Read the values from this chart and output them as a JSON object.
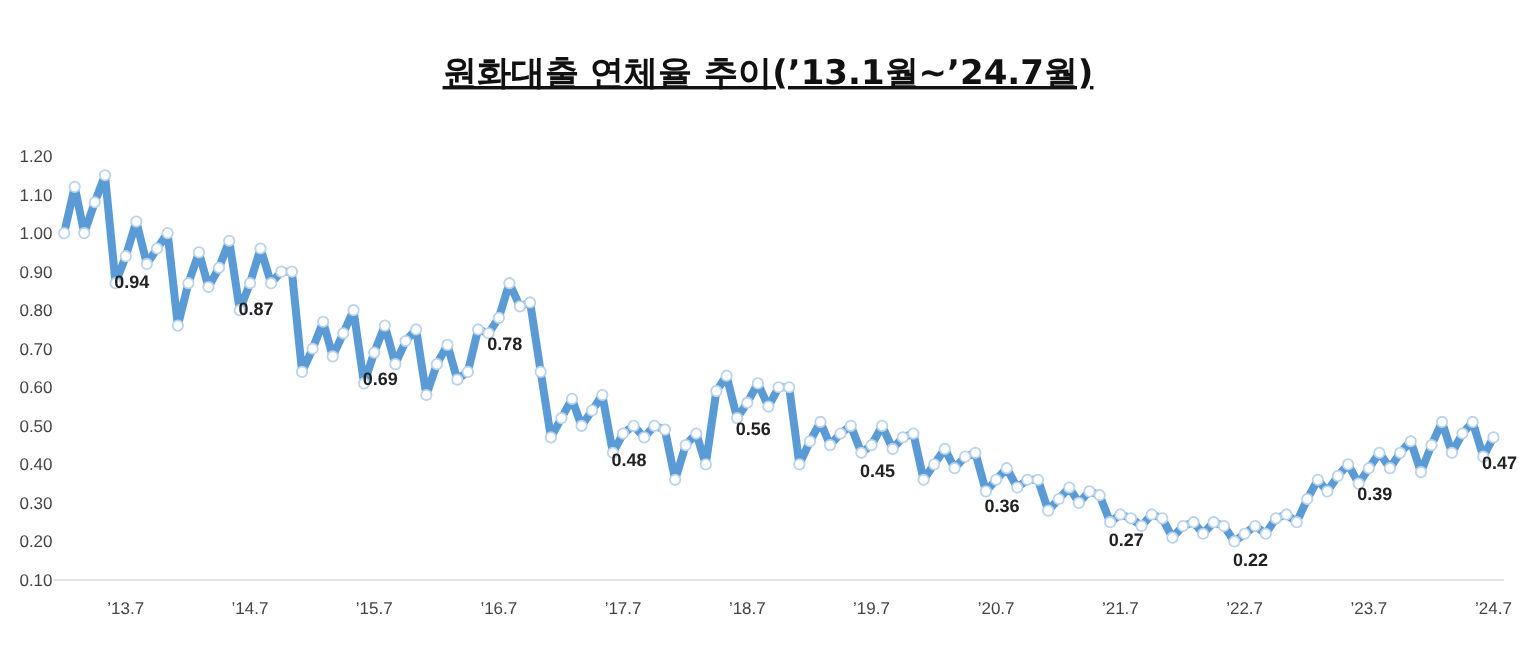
{
  "chart_data": {
    "type": "line",
    "title": "원화대출 연체율 추이(’13.1월~’24.7월)",
    "x": [
      "2013-01",
      "2013-02",
      "2013-03",
      "2013-04",
      "2013-05",
      "2013-06",
      "2013-07",
      "2013-08",
      "2013-09",
      "2013-10",
      "2013-11",
      "2013-12",
      "2014-01",
      "2014-02",
      "2014-03",
      "2014-04",
      "2014-05",
      "2014-06",
      "2014-07",
      "2014-08",
      "2014-09",
      "2014-10",
      "2014-11",
      "2014-12",
      "2015-01",
      "2015-02",
      "2015-03",
      "2015-04",
      "2015-05",
      "2015-06",
      "2015-07",
      "2015-08",
      "2015-09",
      "2015-10",
      "2015-11",
      "2015-12",
      "2016-01",
      "2016-02",
      "2016-03",
      "2016-04",
      "2016-05",
      "2016-06",
      "2016-07",
      "2016-08",
      "2016-09",
      "2016-10",
      "2016-11",
      "2016-12",
      "2017-01",
      "2017-02",
      "2017-03",
      "2017-04",
      "2017-05",
      "2017-06",
      "2017-07",
      "2017-08",
      "2017-09",
      "2017-10",
      "2017-11",
      "2017-12",
      "2018-01",
      "2018-02",
      "2018-03",
      "2018-04",
      "2018-05",
      "2018-06",
      "2018-07",
      "2018-08",
      "2018-09",
      "2018-10",
      "2018-11",
      "2018-12",
      "2019-01",
      "2019-02",
      "2019-03",
      "2019-04",
      "2019-05",
      "2019-06",
      "2019-07",
      "2019-08",
      "2019-09",
      "2019-10",
      "2019-11",
      "2019-12",
      "2020-01",
      "2020-02",
      "2020-03",
      "2020-04",
      "2020-05",
      "2020-06",
      "2020-07",
      "2020-08",
      "2020-09",
      "2020-10",
      "2020-11",
      "2020-12",
      "2021-01",
      "2021-02",
      "2021-03",
      "2021-04",
      "2021-05",
      "2021-06",
      "2021-07",
      "2021-08",
      "2021-09",
      "2021-10",
      "2021-11",
      "2021-12",
      "2022-01",
      "2022-02",
      "2022-03",
      "2022-04",
      "2022-05",
      "2022-06",
      "2022-07",
      "2022-08",
      "2022-09",
      "2022-10",
      "2022-11",
      "2022-12",
      "2023-01",
      "2023-02",
      "2023-03",
      "2023-04",
      "2023-05",
      "2023-06",
      "2023-07",
      "2023-08",
      "2023-09",
      "2023-10",
      "2023-11",
      "2023-12",
      "2024-01",
      "2024-02",
      "2024-03",
      "2024-04",
      "2024-05",
      "2024-06",
      "2024-07"
    ],
    "series": [
      {
        "color": "#5b9bd5",
        "values": [
          1.0,
          1.12,
          1.0,
          1.08,
          1.15,
          0.87,
          0.94,
          1.03,
          0.92,
          0.96,
          1.0,
          0.76,
          0.87,
          0.95,
          0.86,
          0.91,
          0.98,
          0.8,
          0.87,
          0.96,
          0.87,
          0.9,
          0.9,
          0.64,
          0.7,
          0.77,
          0.68,
          0.74,
          0.8,
          0.61,
          0.69,
          0.76,
          0.66,
          0.72,
          0.75,
          0.58,
          0.66,
          0.71,
          0.62,
          0.64,
          0.75,
          0.74,
          0.78,
          0.87,
          0.81,
          0.82,
          0.64,
          0.47,
          0.52,
          0.57,
          0.5,
          0.54,
          0.58,
          0.43,
          0.48,
          0.5,
          0.47,
          0.5,
          0.49,
          0.36,
          0.45,
          0.48,
          0.4,
          0.59,
          0.63,
          0.52,
          0.56,
          0.61,
          0.55,
          0.6,
          0.6,
          0.4,
          0.46,
          0.51,
          0.45,
          0.48,
          0.5,
          0.43,
          0.45,
          0.5,
          0.44,
          0.47,
          0.48,
          0.36,
          0.4,
          0.44,
          0.39,
          0.42,
          0.43,
          0.33,
          0.36,
          0.39,
          0.34,
          0.36,
          0.36,
          0.28,
          0.31,
          0.34,
          0.3,
          0.33,
          0.32,
          0.25,
          0.27,
          0.26,
          0.24,
          0.27,
          0.26,
          0.21,
          0.24,
          0.25,
          0.22,
          0.25,
          0.24,
          0.2,
          0.22,
          0.24,
          0.22,
          0.26,
          0.27,
          0.25,
          0.31,
          0.36,
          0.33,
          0.37,
          0.4,
          0.35,
          0.39,
          0.43,
          0.39,
          0.43,
          0.46,
          0.38,
          0.45,
          0.51,
          0.43,
          0.48,
          0.51,
          0.42,
          0.47
        ],
        "value_labels": [
          null,
          null,
          null,
          null,
          null,
          null,
          "0.94",
          null,
          null,
          null,
          null,
          null,
          null,
          null,
          null,
          null,
          null,
          null,
          "0.87",
          null,
          null,
          null,
          null,
          null,
          null,
          null,
          null,
          null,
          null,
          null,
          "0.69",
          null,
          null,
          null,
          null,
          null,
          null,
          null,
          null,
          null,
          null,
          null,
          "0.78",
          null,
          null,
          null,
          null,
          null,
          null,
          null,
          null,
          null,
          null,
          null,
          "0.48",
          null,
          null,
          null,
          null,
          null,
          null,
          null,
          null,
          null,
          null,
          null,
          "0.56",
          null,
          null,
          null,
          null,
          null,
          null,
          null,
          null,
          null,
          null,
          null,
          "0.45",
          null,
          null,
          null,
          null,
          null,
          null,
          null,
          null,
          null,
          null,
          null,
          "0.36",
          null,
          null,
          null,
          null,
          null,
          null,
          null,
          null,
          null,
          null,
          null,
          "0.27",
          null,
          null,
          null,
          null,
          null,
          null,
          null,
          null,
          null,
          null,
          null,
          "0.22",
          null,
          null,
          null,
          null,
          null,
          null,
          null,
          null,
          null,
          null,
          null,
          "0.39",
          null,
          null,
          null,
          null,
          null,
          null,
          null,
          null,
          null,
          null,
          null,
          "0.47"
        ]
      }
    ],
    "xlim": [
      "2012-12",
      "2024-08"
    ],
    "xticks": [
      {
        "value": "2013-07",
        "label": "’13.7"
      },
      {
        "value": "2014-07",
        "label": "’14.7"
      },
      {
        "value": "2015-07",
        "label": "’15.7"
      },
      {
        "value": "2016-07",
        "label": "’16.7"
      },
      {
        "value": "2017-07",
        "label": "’17.7"
      },
      {
        "value": "2018-07",
        "label": "’18.7"
      },
      {
        "value": "2019-07",
        "label": "’19.7"
      },
      {
        "value": "2020-07",
        "label": "’20.7"
      },
      {
        "value": "2021-07",
        "label": "’21.7"
      },
      {
        "value": "2022-07",
        "label": "’22.7"
      },
      {
        "value": "2023-07",
        "label": "’23.7"
      },
      {
        "value": "2024-07",
        "label": "’24.7"
      }
    ],
    "ylim": [
      0.1,
      1.2
    ],
    "yticks": [
      {
        "value": 0.1,
        "label": "0.10"
      },
      {
        "value": 0.2,
        "label": "0.20"
      },
      {
        "value": 0.3,
        "label": "0.30"
      },
      {
        "value": 0.4,
        "label": "0.40"
      },
      {
        "value": 0.5,
        "label": "0.50"
      },
      {
        "value": 0.6,
        "label": "0.60"
      },
      {
        "value": 0.7,
        "label": "0.70"
      },
      {
        "value": 0.8,
        "label": "0.80"
      },
      {
        "value": 0.9,
        "label": "0.90"
      },
      {
        "value": 1.0,
        "label": "1.00"
      },
      {
        "value": 1.1,
        "label": "1.10"
      },
      {
        "value": 1.2,
        "label": "1.20"
      }
    ],
    "marker": "circle",
    "line_style": "solid"
  }
}
